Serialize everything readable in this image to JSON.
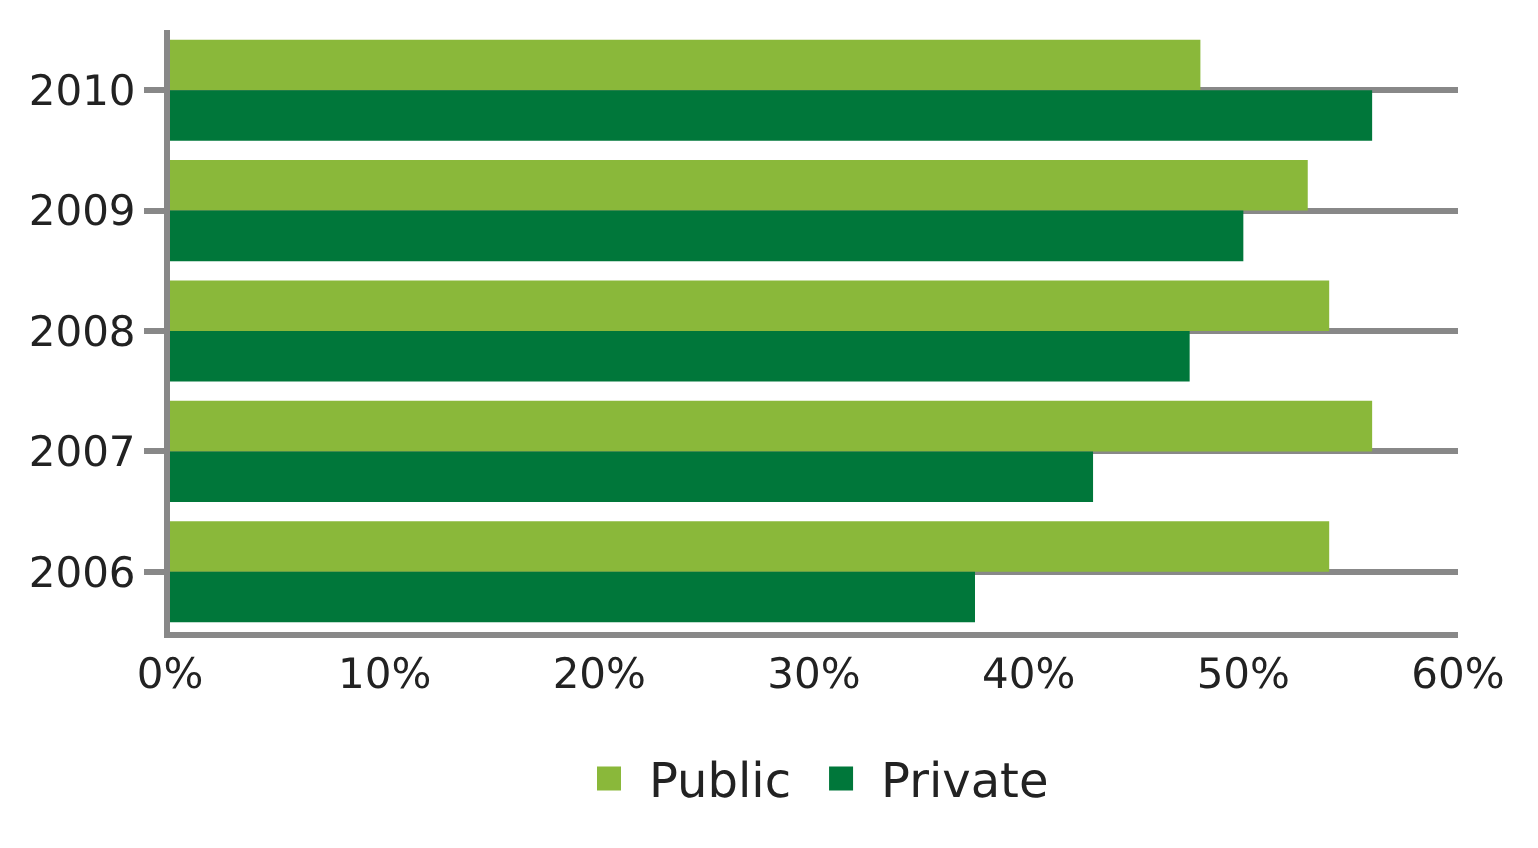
{
  "chart_data": {
    "type": "bar",
    "orientation": "horizontal",
    "categories": [
      "2010",
      "2009",
      "2008",
      "2007",
      "2006"
    ],
    "series": [
      {
        "name": "Public",
        "color": "#8ab83a",
        "values": [
          48,
          53,
          54,
          56,
          54
        ]
      },
      {
        "name": "Private",
        "color": "#00773a",
        "values": [
          56,
          50,
          47.5,
          43,
          37.5
        ]
      }
    ],
    "xlim": [
      0,
      60
    ],
    "xticks": [
      {
        "value": 0,
        "label": "0%"
      },
      {
        "value": 10,
        "label": "10%"
      },
      {
        "value": 20,
        "label": "20%"
      },
      {
        "value": 30,
        "label": "30%"
      },
      {
        "value": 40,
        "label": "40%"
      },
      {
        "value": 50,
        "label": "50%"
      },
      {
        "value": 60,
        "label": "60%"
      }
    ],
    "grid": "y",
    "legend": "bottom"
  }
}
